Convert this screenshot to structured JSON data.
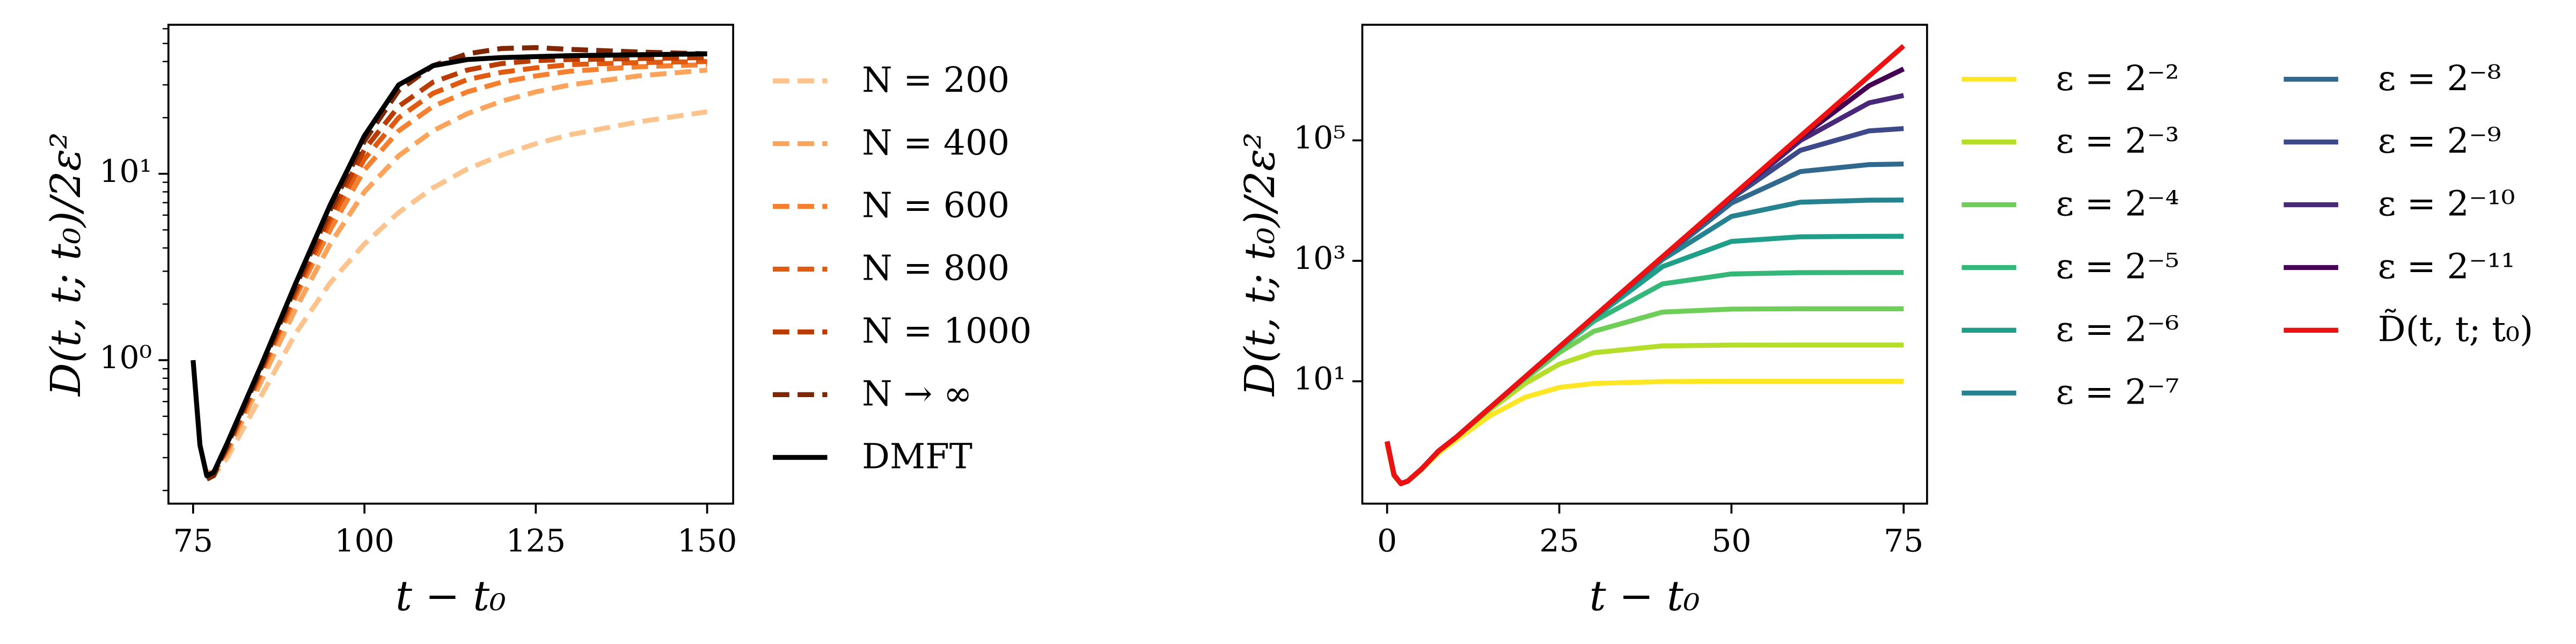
{
  "chart_data": [
    {
      "type": "line",
      "y_scale": "log",
      "minor_ticks": true,
      "xlabel": "t − t₀",
      "ylabel": "D(t, t; t₀)/2ε²",
      "xlim": [
        71.4,
        153.8
      ],
      "xticks": [
        75,
        100,
        125,
        150
      ],
      "ylim": [
        0.17,
        63
      ],
      "yticks": [
        {
          "value": 1,
          "label": "10⁰"
        },
        {
          "value": 10,
          "label": "10¹"
        }
      ],
      "x": [
        75,
        76,
        77,
        78,
        80,
        85,
        90,
        95,
        100,
        105,
        110,
        115,
        120,
        125,
        130,
        140,
        150
      ],
      "series": [
        {
          "name": "N = 200",
          "color": "#fdc38d",
          "dash": true,
          "values": [
            null,
            null,
            0.24,
            0.24,
            0.3,
            0.65,
            1.4,
            2.6,
            4.2,
            6.2,
            8.4,
            10.6,
            12.6,
            14.5,
            16.2,
            19,
            21.5
          ]
        },
        {
          "name": "N = 400",
          "color": "#fca35c",
          "dash": true,
          "values": [
            null,
            null,
            0.25,
            0.25,
            0.32,
            0.78,
            1.9,
            4.2,
            8,
            12.5,
            17,
            21,
            24.5,
            27.5,
            30,
            33.5,
            36
          ]
        },
        {
          "name": "N = 600",
          "color": "#f5802f",
          "dash": true,
          "values": [
            null,
            null,
            0.24,
            0.25,
            0.33,
            0.85,
            2.2,
            5,
            10.5,
            17,
            23,
            27.5,
            31,
            33.5,
            35.5,
            37.5,
            38.5
          ]
        },
        {
          "name": "N = 800",
          "color": "#e05a10",
          "dash": true,
          "values": [
            null,
            null,
            0.24,
            0.25,
            0.34,
            0.88,
            2.3,
            5.6,
            12,
            20,
            27,
            32,
            35,
            37,
            38.5,
            39.5,
            40
          ]
        },
        {
          "name": "N = 1000",
          "color": "#b83c04",
          "dash": true,
          "values": [
            null,
            null,
            0.24,
            0.25,
            0.34,
            0.9,
            2.4,
            6,
            13.5,
            23,
            31,
            36,
            39,
            40.5,
            41,
            41.5,
            42
          ]
        },
        {
          "name": "N → ∞",
          "color": "#7f2704",
          "dash": true,
          "values": [
            null,
            null,
            0.23,
            0.24,
            0.35,
            0.92,
            2.5,
            6.4,
            15,
            28,
            38,
            44,
            47,
            47.5,
            46.5,
            45,
            44
          ]
        },
        {
          "name": "DMFT",
          "color": "#000000",
          "dash": false,
          "values": [
            1.0,
            0.35,
            0.24,
            0.25,
            0.36,
            0.95,
            2.6,
            6.8,
            16,
            30,
            38,
            41,
            42,
            42.5,
            43,
            43.5,
            44
          ]
        }
      ]
    },
    {
      "type": "line",
      "y_scale": "log",
      "minor_ticks": false,
      "xlabel": "t − t₀",
      "ylabel": "D(t, t; t₀)/2ε²",
      "xlim": [
        -3.6,
        78.4
      ],
      "xticks": [
        0,
        25,
        50,
        75
      ],
      "ylim": [
        0.093,
        8300000
      ],
      "yticks": [
        {
          "value": 10,
          "label": "10¹"
        },
        {
          "value": 1000,
          "label": "10³"
        },
        {
          "value": 100000,
          "label": "10⁵"
        }
      ],
      "x": [
        0,
        1,
        2,
        3,
        5,
        7.5,
        10,
        15,
        20,
        25,
        30,
        40,
        50,
        60,
        70,
        75
      ],
      "series": [
        {
          "name": "ε = 2⁻²",
          "color": "#fde725",
          "values": [
            0.91,
            0.27,
            0.2,
            0.22,
            0.34,
            0.65,
            1.05,
            2.7,
            5.4,
            7.9,
            9.2,
            9.9,
            10,
            10,
            10,
            10
          ]
        },
        {
          "name": "ε = 2⁻³",
          "color": "#b5de2b",
          "values": [
            0.98,
            0.27,
            0.2,
            0.22,
            0.35,
            0.69,
            1.14,
            3.4,
            9.1,
            19.2,
            29.8,
            38.7,
            39.9,
            40,
            40,
            40
          ]
        },
        {
          "name": "ε = 2⁻⁴",
          "color": "#6ece58",
          "values": [
            1,
            0.28,
            0.2,
            0.22,
            0.35,
            0.7,
            1.16,
            3.6,
            10.9,
            30,
            67.5,
            141,
            158,
            160,
            160,
            160
          ]
        },
        {
          "name": "ε = 2⁻⁵",
          "color": "#35b779",
          "values": [
            1,
            0.28,
            0.2,
            0.22,
            0.35,
            0.7,
            1.17,
            3.7,
            11.5,
            35,
            99,
            414,
            605,
            637,
            640,
            640
          ]
        },
        {
          "name": "ε = 2⁻⁶",
          "color": "#1f9e89",
          "values": [
            1,
            0.28,
            0.2,
            0.22,
            0.35,
            0.7,
            1.17,
            3.7,
            11.6,
            36.5,
            112,
            803,
            2100,
            2505,
            2554,
            2558
          ]
        },
        {
          "name": "ε = 2⁻⁷",
          "color": "#26828e",
          "values": [
            1,
            0.28,
            0.2,
            0.22,
            0.35,
            0.7,
            1.17,
            3.7,
            11.7,
            36.9,
            115.7,
            1050,
            5460,
            9416,
            10151,
            10212
          ]
        },
        {
          "name": "ε = 2⁻⁸",
          "color": "#31688e",
          "values": [
            1,
            0.28,
            0.2,
            0.22,
            0.35,
            0.7,
            1.17,
            3.7,
            11.7,
            37,
            116.7,
            1137,
            9100,
            30340,
            39575,
            40512
          ]
        },
        {
          "name": "ε = 2⁻⁹",
          "color": "#3e4989",
          "values": [
            1,
            0.28,
            0.2,
            0.22,
            0.35,
            0.7,
            1.17,
            3.7,
            11.7,
            37,
            117,
            1162,
            10920,
            68260,
            143720,
            156890
          ]
        },
        {
          "name": "ε = 2⁻¹⁰",
          "color": "#482878",
          "values": [
            1,
            0.28,
            0.2,
            0.22,
            0.35,
            0.7,
            1.17,
            3.7,
            11.7,
            37,
            117,
            1168,
            11495,
            99270,
            420000,
            556700
          ]
        },
        {
          "name": "ε = 2⁻¹¹",
          "color": "#440154",
          "values": [
            1,
            0.28,
            0.2,
            0.22,
            0.35,
            0.7,
            1.17,
            3.7,
            11.7,
            37,
            117,
            1170,
            11650,
            112000,
            809000,
            1534000
          ]
        },
        {
          "name": "D̃(t, t; t₀)",
          "color": "#ee1111",
          "values": [
            1,
            0.28,
            0.2,
            0.22,
            0.35,
            0.7,
            1.17,
            3.7,
            11.7,
            37,
            117,
            1170,
            11700,
            117000,
            1170000,
            3700000
          ]
        }
      ]
    }
  ]
}
